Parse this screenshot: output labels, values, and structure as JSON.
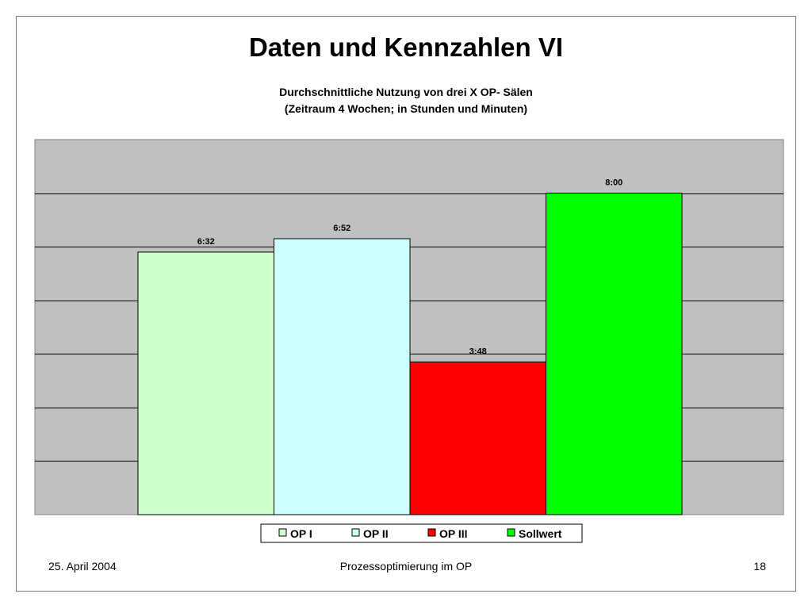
{
  "slide": {
    "title": "Daten und Kennzahlen VI",
    "footer_date": "25. April 2004",
    "footer_center": "Prozessoptimierung im OP",
    "page_number": "18"
  },
  "chart_data": {
    "type": "bar",
    "title_lines": [
      "Durchschnittliche Nutzung von drei X OP- Sälen",
      "(Zeitraum 4 Wochen; in Stunden und Minuten)"
    ],
    "categories": [
      "OP I",
      "OP II",
      "OP III",
      "Sollwert"
    ],
    "values_minutes": [
      392,
      412,
      228,
      480
    ],
    "labels": [
      "6:32",
      "6:52",
      "3:48",
      "8:00"
    ],
    "colors": [
      "#ccffcc",
      "#ccffff",
      "#ff0000",
      "#00ff00"
    ],
    "ylim_minutes": [
      0,
      560
    ],
    "gridline_step_minutes": 80,
    "plot_background": "#c0c0c0",
    "grid": true,
    "y_tick_labels_shown": false,
    "legend_position": "bottom",
    "legend": [
      "OP I",
      "OP II",
      "OP III",
      "Sollwert"
    ]
  }
}
